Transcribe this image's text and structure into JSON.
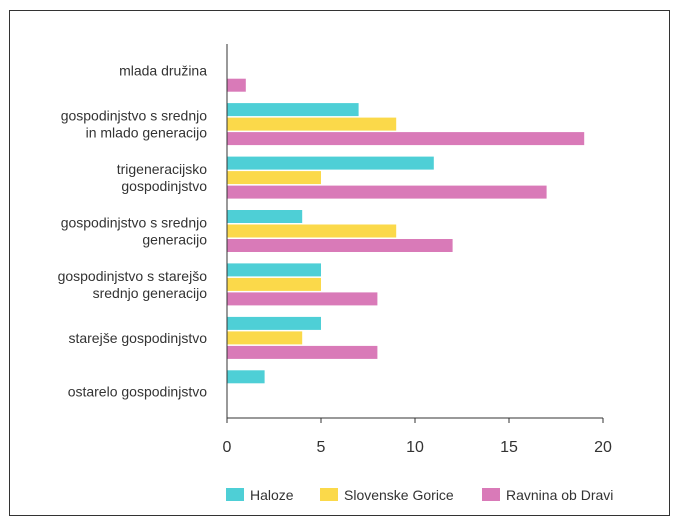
{
  "chart_data": {
    "type": "bar",
    "orientation": "horizontal",
    "categories": [
      [
        "mlada družina"
      ],
      [
        "gospodinjstvo s srednjo",
        "in mlado generacijo"
      ],
      [
        "trigeneracijsko",
        "gospodinjstvo"
      ],
      [
        "gospodinjstvo s srednjo",
        "generacijo"
      ],
      [
        "gospodinjstvo s starejšo",
        "srednjo generacijo"
      ],
      [
        "starejše gospodinjstvo"
      ],
      [
        "ostarelo gospodinjstvo"
      ]
    ],
    "series": [
      {
        "name": "Haloze",
        "color": "#4ecfd6",
        "values": [
          0,
          7,
          11,
          4,
          5,
          5,
          2
        ]
      },
      {
        "name": "Slovenske Gorice",
        "color": "#fbd94a",
        "values": [
          0,
          9,
          5,
          9,
          5,
          4,
          0
        ]
      },
      {
        "name": "Ravnina ob Dravi",
        "color": "#d97ab8",
        "values": [
          1,
          19,
          17,
          12,
          8,
          8,
          0
        ]
      }
    ],
    "xlim": [
      0,
      20
    ],
    "xticks": [
      0,
      5,
      10,
      15,
      20
    ],
    "legend_position": "bottom",
    "grid": false
  }
}
